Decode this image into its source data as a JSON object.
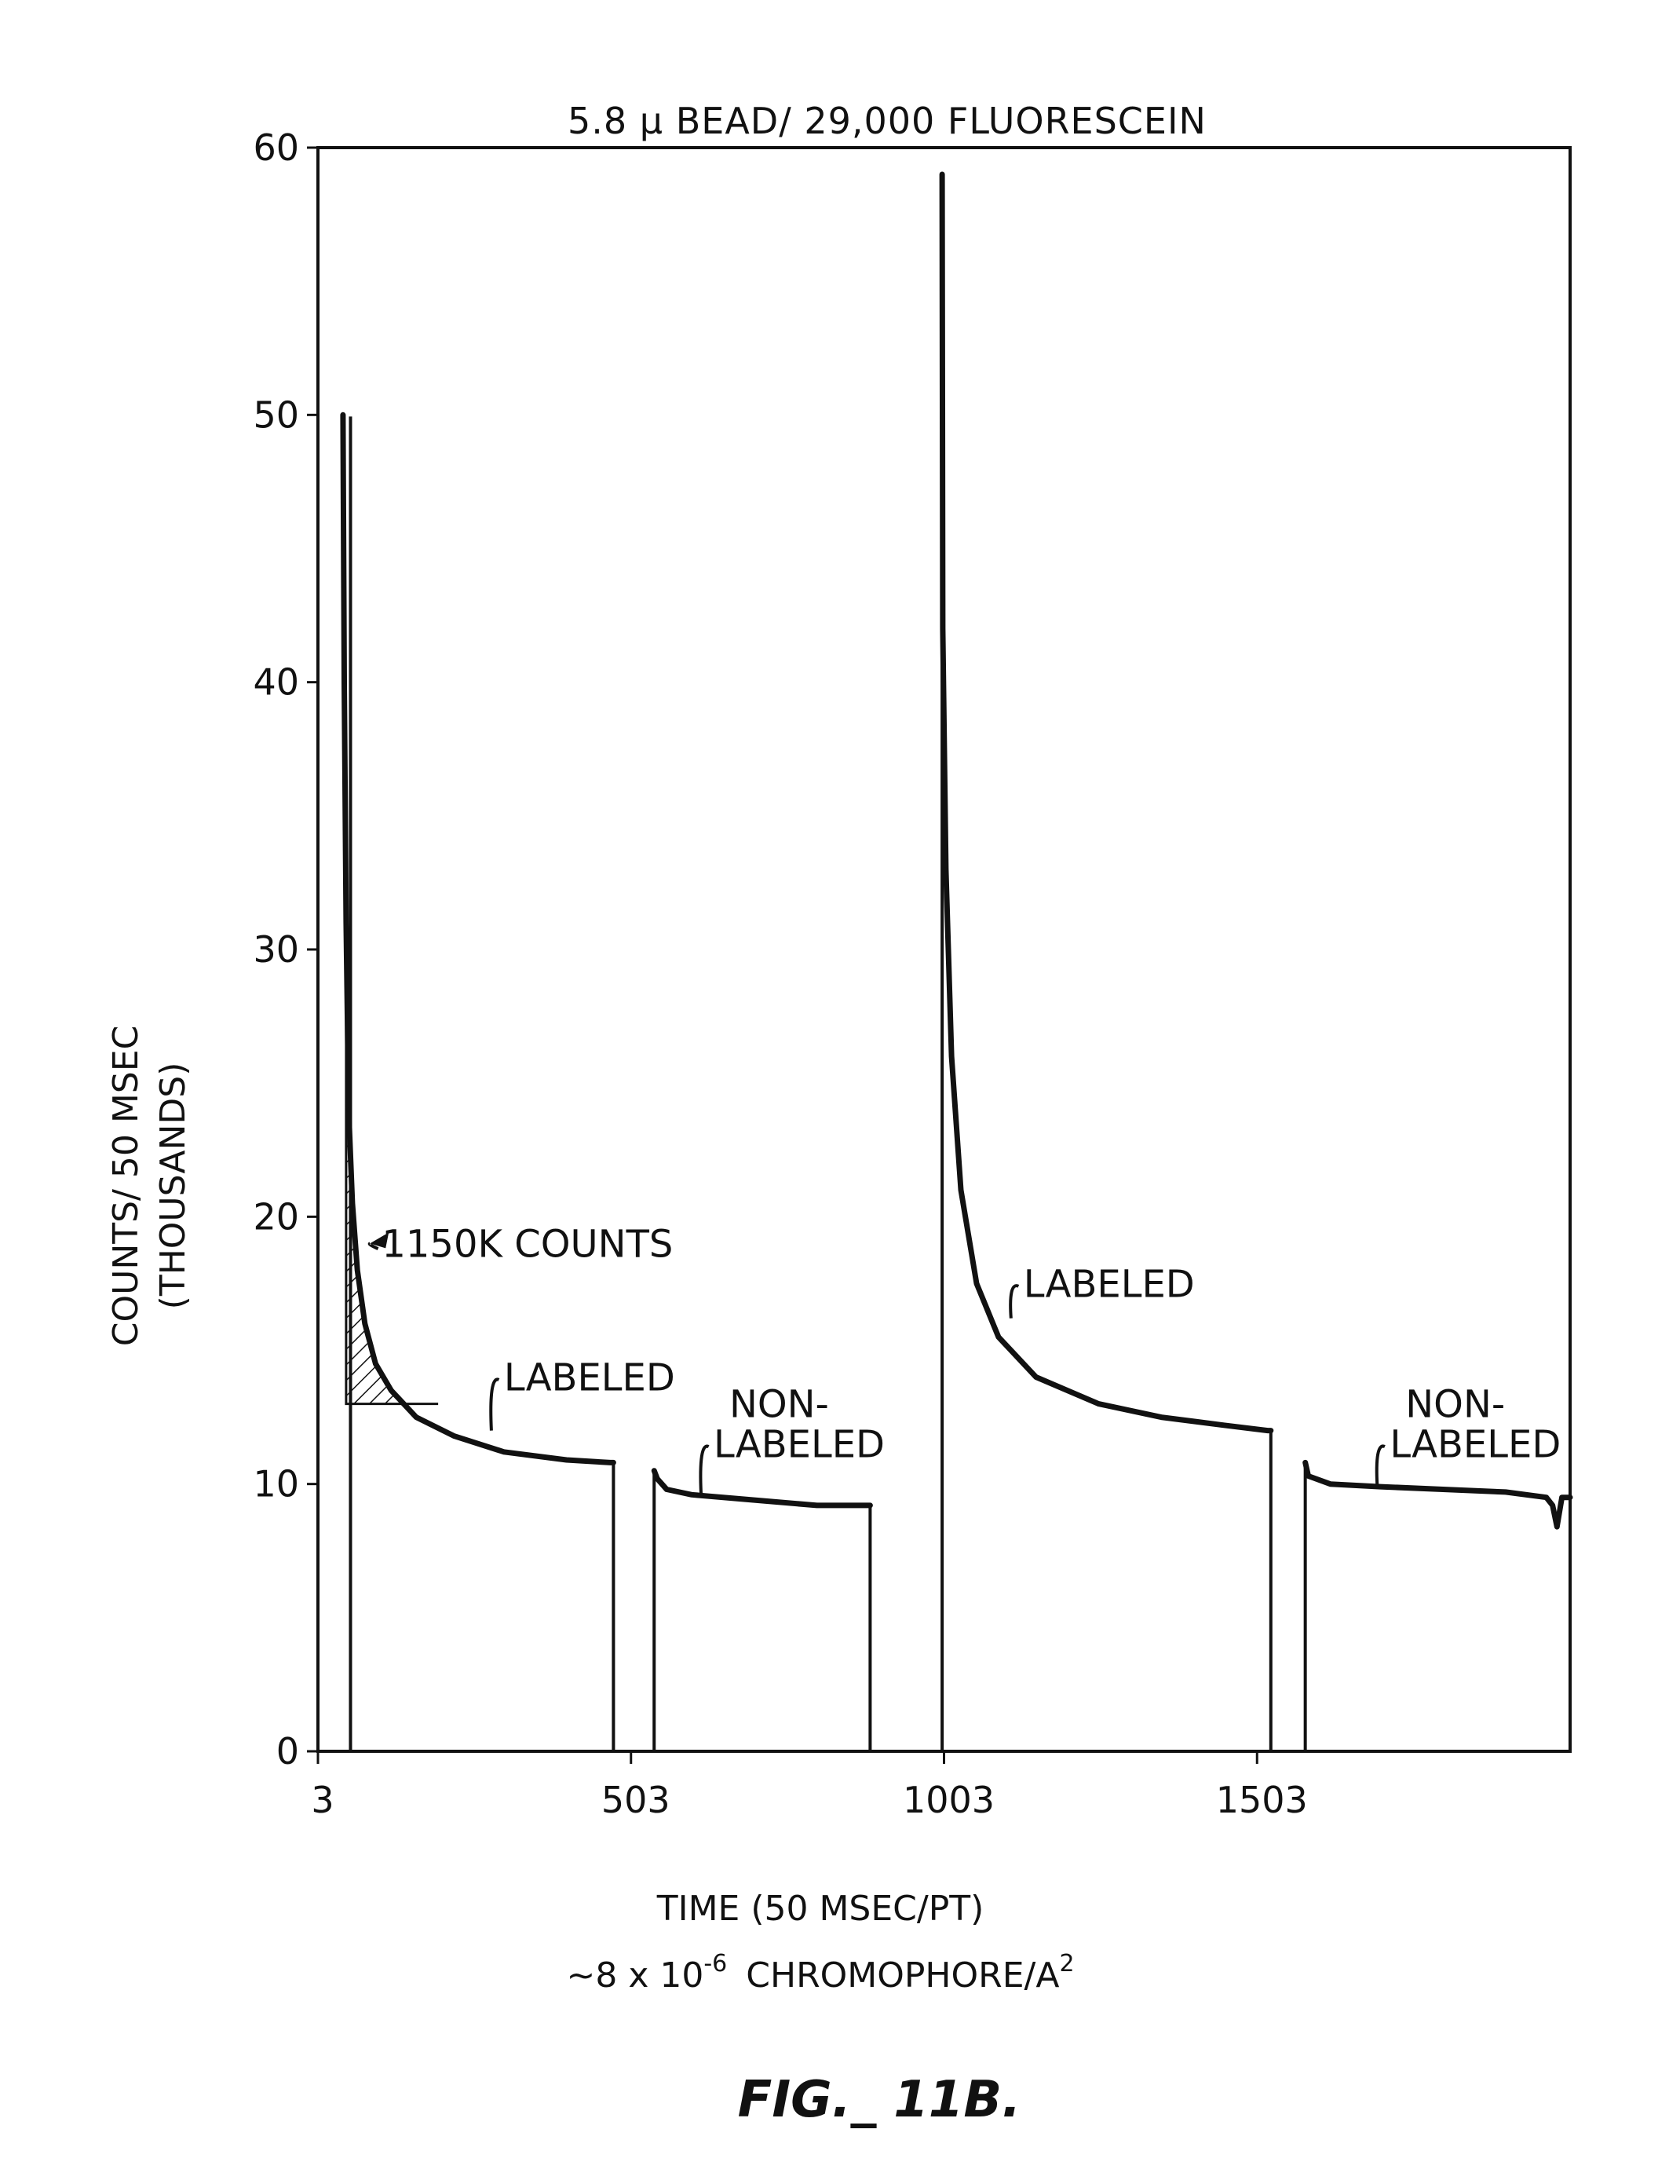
{
  "chart_data": {
    "type": "line",
    "title": "5.8 μ BEAD/ 29,000 FLUORESCEIN",
    "xlabel": "TIME (50 MSEC/PT)",
    "xlabel_sub": {
      "base": "~8 x 10",
      "exponent": "-6",
      "unit": "CHROMOPHORE/A",
      "unit_exponent": "2"
    },
    "ylabel": "COUNTS/ 50 MSEC",
    "ylabel_sub": "(THOUSANDS)",
    "xlim": [
      3,
      2003
    ],
    "ylim": [
      0,
      60
    ],
    "x_ticks": [
      3,
      503,
      1003,
      1503
    ],
    "x_tick_labels": [
      "3",
      "503",
      "1003",
      "1503"
    ],
    "y_ticks": [
      0,
      10,
      20,
      30,
      40,
      50,
      60
    ],
    "y_tick_labels": [
      "0",
      "10",
      "20",
      "30",
      "40",
      "50",
      "60"
    ],
    "series": [
      {
        "name": "LABELED",
        "x": [
          43,
          45,
          48,
          52,
          58,
          66,
          78,
          95,
          120,
          160,
          220,
          300,
          400,
          470,
          475
        ],
        "y": [
          50,
          40,
          31,
          24,
          20.5,
          18,
          16,
          14.5,
          13.5,
          12.5,
          11.8,
          11.2,
          10.9,
          10.8,
          10.8
        ]
      },
      {
        "name": "NON-LABELED",
        "x": [
          540,
          545,
          560,
          600,
          700,
          800,
          880,
          885
        ],
        "y": [
          10.5,
          10.2,
          9.8,
          9.6,
          9.4,
          9.2,
          9.2,
          9.2
        ]
      },
      {
        "name": "LABELED",
        "x": [
          1000,
          1001,
          1006,
          1015,
          1030,
          1055,
          1090,
          1150,
          1250,
          1350,
          1450,
          1520,
          1525
        ],
        "y": [
          59,
          42,
          33,
          26,
          21,
          17.5,
          15.5,
          14,
          13,
          12.5,
          12.2,
          12,
          12
        ]
      },
      {
        "name": "NON-LABELED",
        "x": [
          1580,
          1585,
          1620,
          1700,
          1800,
          1900,
          1965,
          1975,
          1982,
          1990,
          2003
        ],
        "y": [
          10.8,
          10.3,
          10,
          9.9,
          9.8,
          9.7,
          9.5,
          9.2,
          8.4,
          9.5,
          9.5
        ]
      }
    ],
    "shaded_region": {
      "x": [
        20,
        195
      ],
      "y_base": 13,
      "label": "1150K COUNTS"
    },
    "annotations": [
      {
        "text": "1150K COUNTS",
        "x": 105,
        "y": 18.5
      },
      {
        "text": "LABELED",
        "x": 300,
        "y": 13.5
      },
      {
        "text": "NON-",
        "x": 660,
        "y": 12.5
      },
      {
        "text": "LABELED",
        "x": 635,
        "y": 11
      },
      {
        "text": "LABELED",
        "x": 1130,
        "y": 17
      },
      {
        "text": "NON-",
        "x": 1740,
        "y": 12.5
      },
      {
        "text": "LABELED",
        "x": 1715,
        "y": 11
      }
    ]
  },
  "figure_caption": "FIG._ 11B."
}
